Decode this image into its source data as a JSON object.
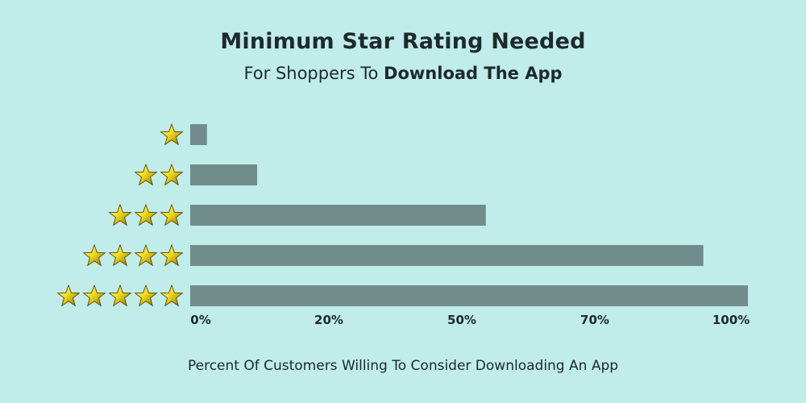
{
  "title": "Minimum Star Rating Needed",
  "subtitle": {
    "prefix": "For Shoppers To ",
    "emphasis": "Download The App"
  },
  "chart_data": {
    "type": "bar",
    "orientation": "horizontal",
    "categories": [
      "1 star",
      "2 stars",
      "3 stars",
      "4 stars",
      "5 stars"
    ],
    "category_star_counts": [
      1,
      2,
      3,
      4,
      5
    ],
    "category_icon": "star-icon",
    "values": [
      3,
      12,
      53,
      92,
      100
    ],
    "xlabel": "Percent Of Customers Willing To Consider Downloading An App",
    "tick_labels": [
      "0%",
      "20%",
      "50%",
      "70%",
      "100%"
    ],
    "xlim": [
      0,
      100
    ],
    "grid": false,
    "legend": "none",
    "bar_color": "#718d8b",
    "star_color": "#e8d317"
  }
}
